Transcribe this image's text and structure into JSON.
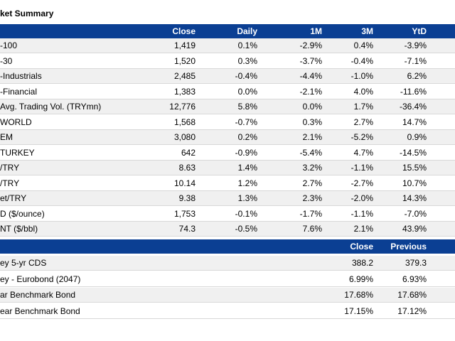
{
  "header": {
    "title": "ket Summary"
  },
  "table": {
    "columns": [
      "Close",
      "Daily",
      "1M",
      "3M",
      "YtD"
    ],
    "rows": [
      [
        "-100",
        "1,419",
        "0.1%",
        "-2.9%",
        "0.4%",
        "-3.9%"
      ],
      [
        "-30",
        "1,520",
        "0.3%",
        "-3.7%",
        "-0.4%",
        "-7.1%"
      ],
      [
        "-Industrials",
        "2,485",
        "-0.4%",
        "-4.4%",
        "-1.0%",
        "6.2%"
      ],
      [
        "-Financial",
        "1,383",
        "0.0%",
        "-2.1%",
        "4.0%",
        "-11.6%"
      ],
      [
        "Avg. Trading Vol. (TRYmn)",
        "12,776",
        "5.8%",
        "0.0%",
        "1.7%",
        "-36.4%"
      ],
      [
        "WORLD",
        "1,568",
        "-0.7%",
        "0.3%",
        "2.7%",
        "14.7%"
      ],
      [
        "EM",
        "3,080",
        "0.2%",
        "2.1%",
        "-5.2%",
        "0.9%"
      ],
      [
        "TURKEY",
        "642",
        "-0.9%",
        "-5.4%",
        "4.7%",
        "-14.5%"
      ],
      [
        "/TRY",
        "8.63",
        "1.4%",
        "3.2%",
        "-1.1%",
        "15.5%"
      ],
      [
        "/TRY",
        "10.14",
        "1.2%",
        "2.7%",
        "-2.7%",
        "10.7%"
      ],
      [
        "et/TRY",
        "9.38",
        "1.3%",
        "2.3%",
        "-2.0%",
        "14.3%"
      ],
      [
        "D ($/ounce)",
        "1,753",
        "-0.1%",
        "-1.7%",
        "-1.1%",
        "-7.0%"
      ],
      [
        "NT ($/bbl)",
        "74.3",
        "-0.5%",
        "7.6%",
        "2.1%",
        "43.9%"
      ]
    ]
  },
  "table2": {
    "columns": [
      "Close",
      "Previous"
    ],
    "rows": [
      [
        "ey 5-yr CDS",
        "388.2",
        "379.3"
      ],
      [
        "ey - Eurobond (2047)",
        "6.99%",
        "6.93%"
      ],
      [
        "ar Benchmark Bond",
        "17.68%",
        "17.68%"
      ],
      [
        "ear Benchmark Bond",
        "17.15%",
        "17.12%"
      ]
    ]
  }
}
